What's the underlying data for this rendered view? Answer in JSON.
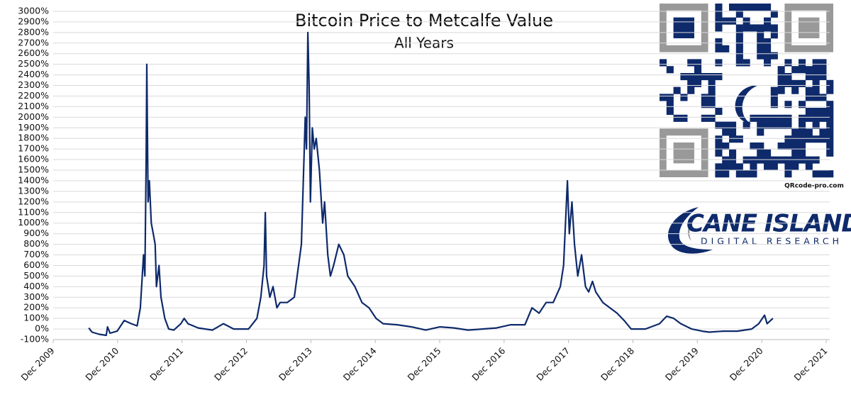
{
  "chart_data": {
    "type": "line",
    "title": "Bitcoin Price to Metcalfe Value",
    "subtitle": "All Years",
    "color": "#0e2a6b",
    "grid": true,
    "x": [
      2010.47,
      2010.52,
      2010.63,
      2010.74,
      2010.76,
      2010.8,
      2010.91,
      2011.02,
      2011.13,
      2011.22,
      2011.27,
      2011.32,
      2011.34,
      2011.36,
      2011.37,
      2011.39,
      2011.41,
      2011.44,
      2011.47,
      2011.5,
      2011.52,
      2011.56,
      2011.59,
      2011.65,
      2011.71,
      2011.79,
      2011.9,
      2011.95,
      2012.01,
      2012.17,
      2012.39,
      2012.56,
      2012.72,
      2012.95,
      2013.08,
      2013.14,
      2013.19,
      2013.21,
      2013.23,
      2013.28,
      2013.33,
      2013.39,
      2013.44,
      2013.55,
      2013.66,
      2013.77,
      2013.83,
      2013.85,
      2013.87,
      2013.89,
      2013.91,
      2013.94,
      2013.97,
      2014.0,
      2014.05,
      2014.1,
      2014.13,
      2014.18,
      2014.22,
      2014.27,
      2014.35,
      2014.43,
      2014.49,
      2014.6,
      2014.71,
      2014.82,
      2014.93,
      2015.04,
      2015.26,
      2015.48,
      2015.7,
      2015.92,
      2016.14,
      2016.36,
      2016.58,
      2016.8,
      2017.02,
      2017.24,
      2017.35,
      2017.46,
      2017.57,
      2017.68,
      2017.79,
      2017.84,
      2017.9,
      2017.93,
      2017.97,
      2018.01,
      2018.06,
      2018.12,
      2018.18,
      2018.23,
      2018.29,
      2018.34,
      2018.45,
      2018.56,
      2018.67,
      2018.78,
      2018.89,
      2019.11,
      2019.33,
      2019.44,
      2019.55,
      2019.66,
      2019.83,
      2019.99,
      2020.1,
      2020.32,
      2020.54,
      2020.76,
      2020.87,
      2020.96,
      2021.0,
      2021.09
    ],
    "series": [
      {
        "name": "Price to Metcalfe Value",
        "color": "#0e2a6b",
        "values": [
          10,
          -30,
          -50,
          -60,
          20,
          -40,
          -20,
          80,
          50,
          30,
          200,
          700,
          500,
          1600,
          2500,
          1200,
          1400,
          1000,
          900,
          800,
          400,
          600,
          300,
          100,
          0,
          -10,
          50,
          100,
          50,
          10,
          -10,
          50,
          0,
          0,
          100,
          300,
          600,
          1100,
          500,
          300,
          400,
          200,
          250,
          250,
          300,
          800,
          2000,
          1700,
          2800,
          2300,
          1200,
          1900,
          1700,
          1800,
          1500,
          1000,
          1200,
          700,
          500,
          600,
          800,
          700,
          500,
          400,
          250,
          200,
          100,
          50,
          40,
          20,
          -10,
          20,
          10,
          -10,
          0,
          10,
          40,
          40,
          200,
          150,
          250,
          250,
          400,
          600,
          1400,
          900,
          1200,
          800,
          500,
          700,
          400,
          350,
          450,
          350,
          250,
          200,
          150,
          80,
          0,
          0,
          50,
          120,
          100,
          50,
          0,
          -20,
          -30,
          -20,
          -20,
          0,
          50,
          130,
          50,
          100
        ]
      }
    ],
    "ylim": [
      -100,
      3000
    ],
    "yticks": [
      {
        "value": -100,
        "label": "-100%"
      },
      {
        "value": 0,
        "label": "0%"
      },
      {
        "value": 100,
        "label": "100%"
      },
      {
        "value": 200,
        "label": "200%"
      },
      {
        "value": 300,
        "label": "300%"
      },
      {
        "value": 400,
        "label": "400%"
      },
      {
        "value": 500,
        "label": "500%"
      },
      {
        "value": 600,
        "label": "600%"
      },
      {
        "value": 700,
        "label": "700%"
      },
      {
        "value": 800,
        "label": "800%"
      },
      {
        "value": 900,
        "label": "900%"
      },
      {
        "value": 1000,
        "label": "1000%"
      },
      {
        "value": 1100,
        "label": "1100%"
      },
      {
        "value": 1200,
        "label": "1200%"
      },
      {
        "value": 1300,
        "label": "1300%"
      },
      {
        "value": 1400,
        "label": "1400%"
      },
      {
        "value": 1500,
        "label": "1500%"
      },
      {
        "value": 1600,
        "label": "1600%"
      },
      {
        "value": 1700,
        "label": "1700%"
      },
      {
        "value": 1800,
        "label": "1800%"
      },
      {
        "value": 1900,
        "label": "1900%"
      },
      {
        "value": 2000,
        "label": "2000%"
      },
      {
        "value": 2100,
        "label": "2100%"
      },
      {
        "value": 2200,
        "label": "2200%"
      },
      {
        "value": 2300,
        "label": "2300%"
      },
      {
        "value": 2400,
        "label": "2400%"
      },
      {
        "value": 2500,
        "label": "2500%"
      },
      {
        "value": 2600,
        "label": "2600%"
      },
      {
        "value": 2700,
        "label": "2700%"
      },
      {
        "value": 2800,
        "label": "2800%"
      },
      {
        "value": 2900,
        "label": "2900%"
      },
      {
        "value": 3000,
        "label": "3000%"
      }
    ],
    "xlim": [
      2009.917,
      2021.917
    ],
    "xticks": [
      {
        "value": 2009.917,
        "label": "Dec 2009"
      },
      {
        "value": 2010.917,
        "label": "Dec 2010"
      },
      {
        "value": 2011.917,
        "label": "Dec 2011"
      },
      {
        "value": 2012.917,
        "label": "Dec 2012"
      },
      {
        "value": 2013.917,
        "label": "Dec 2013"
      },
      {
        "value": 2014.917,
        "label": "Dec 2014"
      },
      {
        "value": 2015.917,
        "label": "Dec 2015"
      },
      {
        "value": 2016.917,
        "label": "Dec 2016"
      },
      {
        "value": 2017.917,
        "label": "Dec 2017"
      },
      {
        "value": 2018.917,
        "label": "Dec 2018"
      },
      {
        "value": 2019.917,
        "label": "Dec 2019"
      },
      {
        "value": 2020.917,
        "label": "Dec 2020"
      },
      {
        "value": 2021.917,
        "label": "Dec 2021"
      }
    ]
  },
  "logo": {
    "name": "CANE ISLAND",
    "tagline": "DIGITAL RESEARCH"
  },
  "qr_caption": "QRcode-pro.com"
}
